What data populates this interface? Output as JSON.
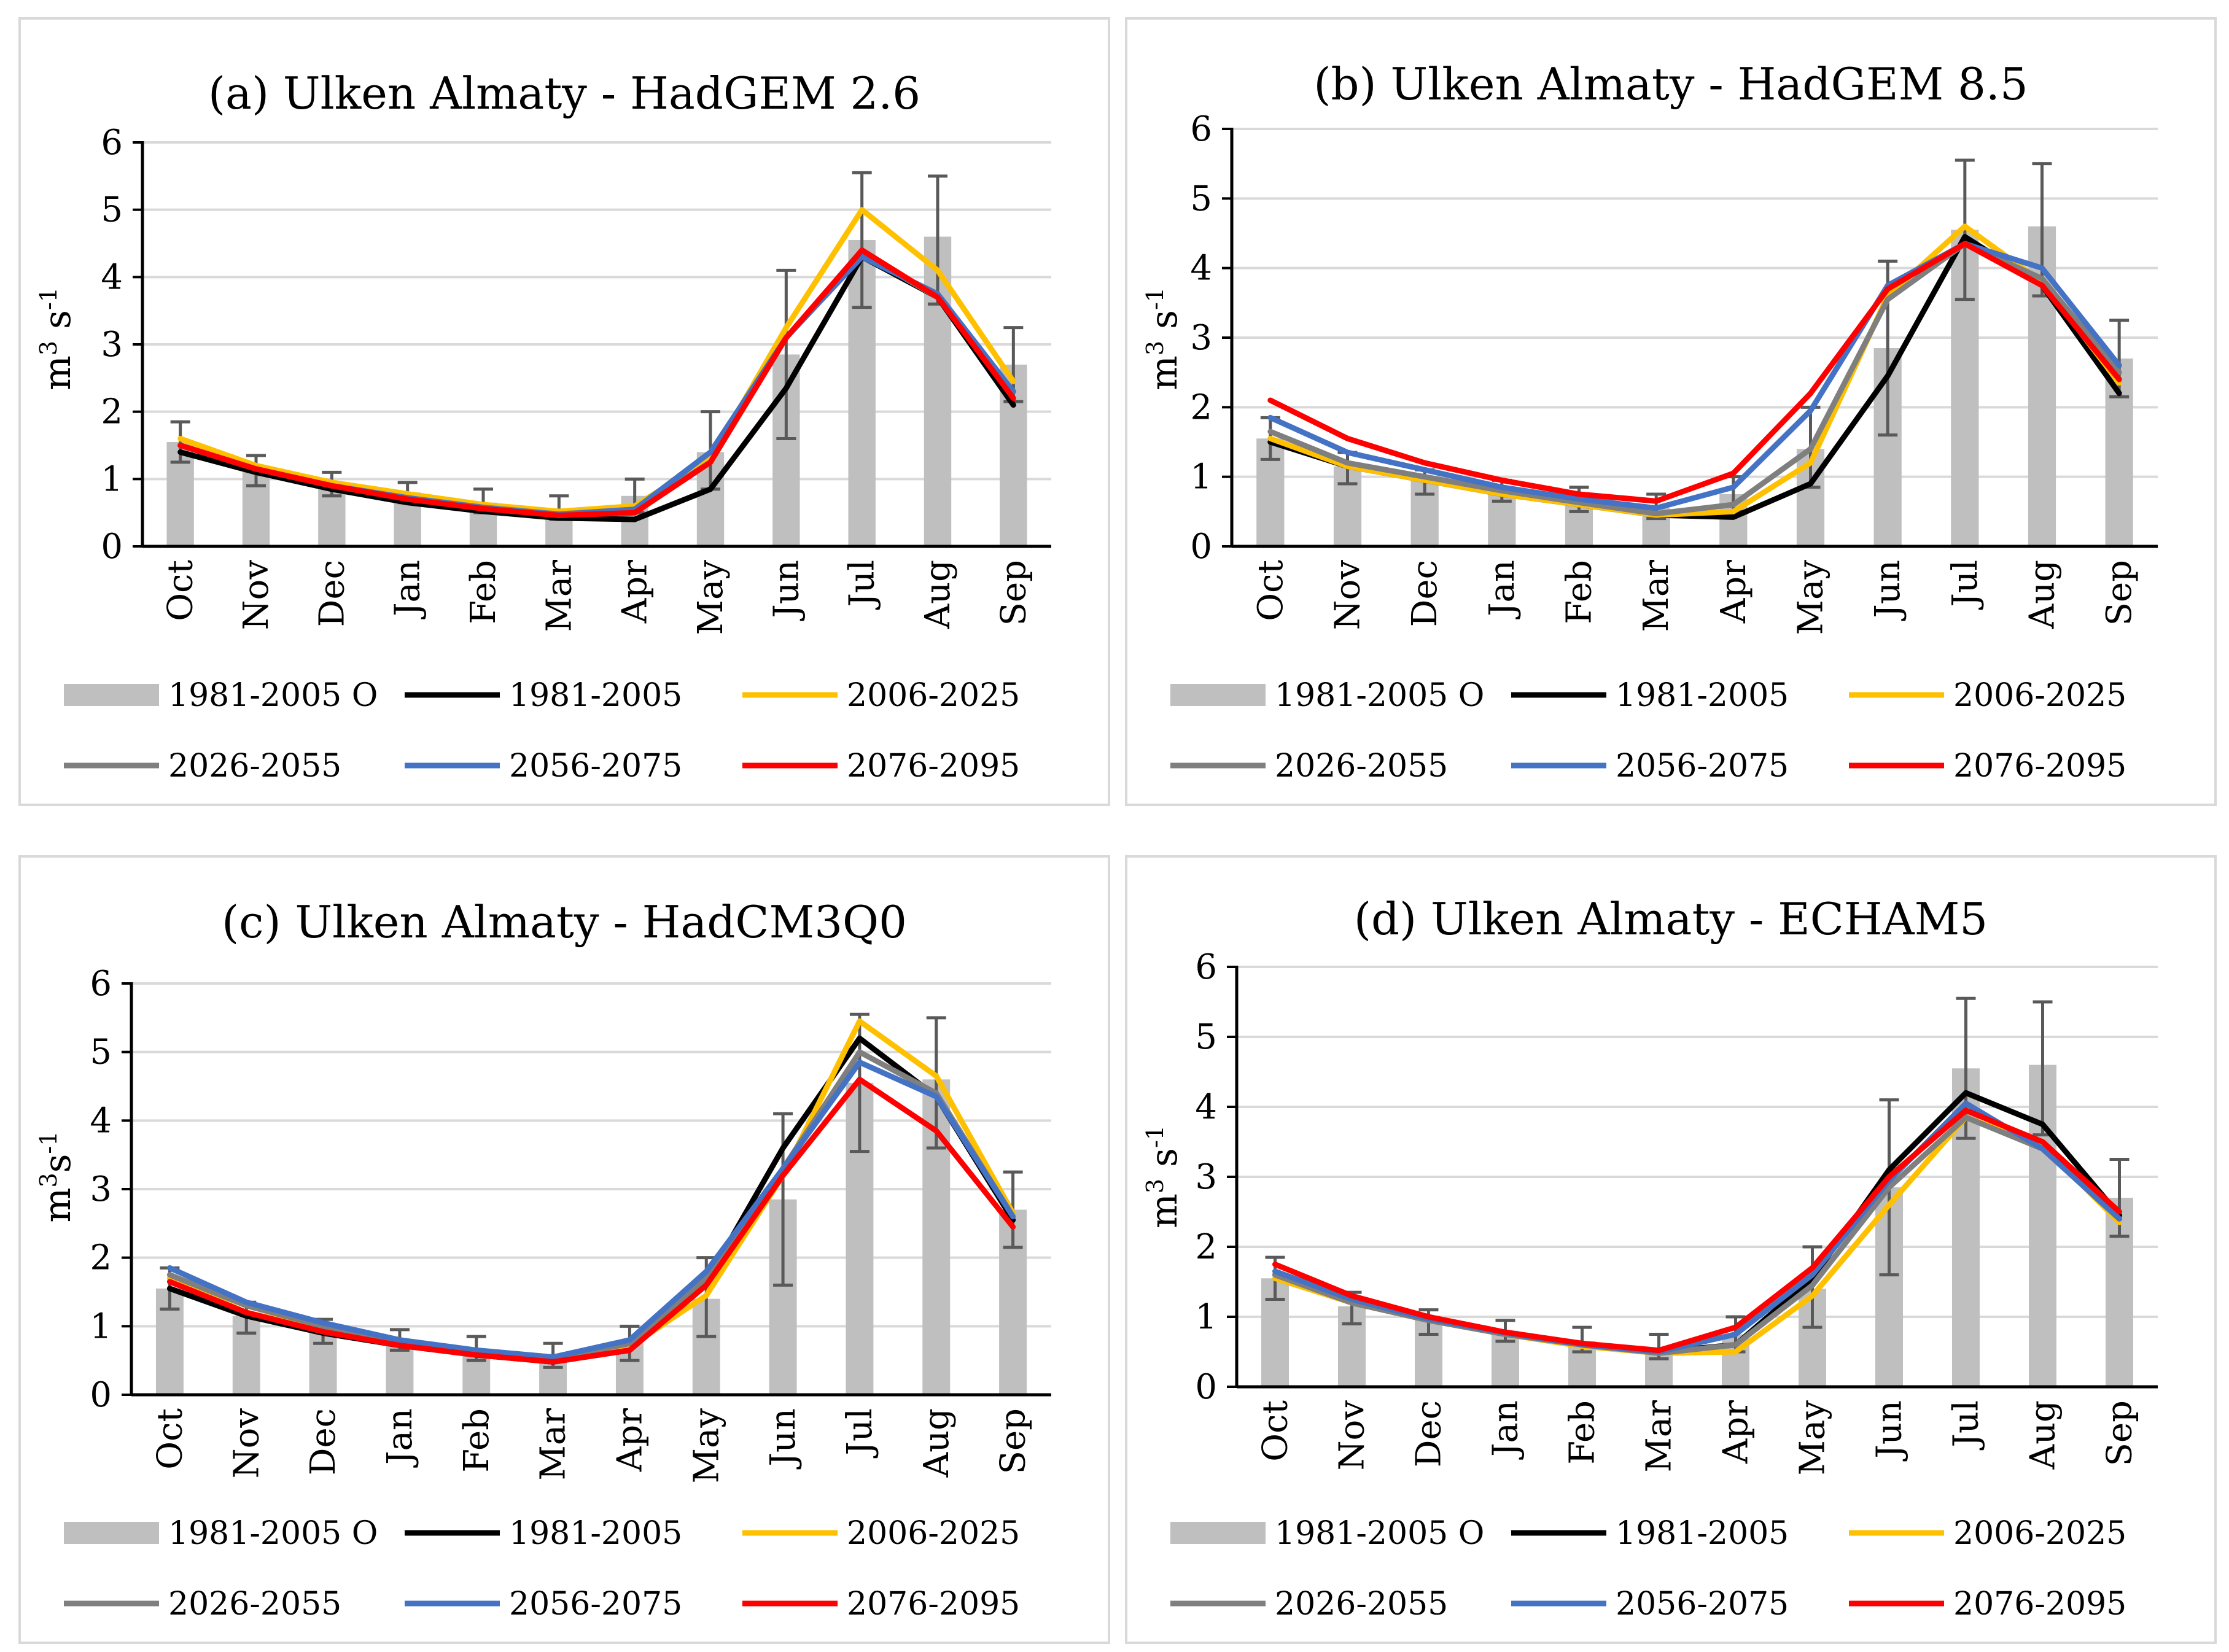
{
  "colors": {
    "obs_bar": "#bfbfbf",
    "grid": "#d9d9d9",
    "axis": "#000000",
    "errbar": "#595959",
    "1981-2005": "#000000",
    "2006-2025": "#ffc000",
    "2026-2055": "#7f7f7f",
    "2056-2075": "#4472c4",
    "2076-2095": "#ff0000"
  },
  "legend": [
    "1981-2005 O",
    "1981-2005",
    "2006-2025",
    "2026-2055",
    "2056-2075",
    "2076-2095"
  ],
  "months": [
    "Oct",
    "Nov",
    "Dec",
    "Jan",
    "Feb",
    "Mar",
    "Apr",
    "May",
    "Jun",
    "Jul",
    "Aug",
    "Sep"
  ],
  "yticks": [
    "0",
    "1",
    "2",
    "3",
    "4",
    "5",
    "6"
  ],
  "ylabels": [
    {
      "base": "m",
      "sup1": "3",
      "mid": " s",
      "sup2": "-1"
    },
    {
      "base": "m",
      "sup1": "3",
      "mid": " s",
      "sup2": "-1"
    },
    {
      "base": "m",
      "sup1": "3",
      "mid": "s",
      "sup2": "-1"
    },
    {
      "base": "m",
      "sup1": "3",
      "mid": " s",
      "sup2": "-1"
    }
  ],
  "chart_data": [
    {
      "type": "bar+line",
      "title": "(a) Ulken Almaty - HadGEM 2.6",
      "ylabel": "m3 s-1",
      "ylim": [
        0,
        6
      ],
      "categories": [
        "Oct",
        "Nov",
        "Dec",
        "Jan",
        "Feb",
        "Mar",
        "Apr",
        "May",
        "Jun",
        "Jul",
        "Aug",
        "Sep"
      ],
      "bars": {
        "name": "1981-2005 O",
        "values": [
          1.55,
          1.15,
          0.95,
          0.8,
          0.65,
          0.55,
          0.75,
          1.4,
          2.85,
          4.55,
          4.6,
          2.7
        ],
        "err_low": [
          1.25,
          0.9,
          0.75,
          0.65,
          0.5,
          0.4,
          0.5,
          0.85,
          1.6,
          3.55,
          3.6,
          2.15
        ],
        "err_high": [
          1.85,
          1.35,
          1.1,
          0.95,
          0.85,
          0.75,
          1.0,
          2.0,
          4.1,
          5.55,
          5.5,
          3.25
        ]
      },
      "series": [
        {
          "name": "1981-2005",
          "values": [
            1.4,
            1.1,
            0.85,
            0.65,
            0.52,
            0.42,
            0.4,
            0.85,
            2.35,
            4.3,
            3.7,
            2.1
          ]
        },
        {
          "name": "2006-2025",
          "values": [
            1.6,
            1.2,
            0.95,
            0.78,
            0.62,
            0.52,
            0.6,
            1.3,
            3.25,
            5.0,
            4.1,
            2.45
          ]
        },
        {
          "name": "2026-2055",
          "values": [
            1.5,
            1.15,
            0.9,
            0.72,
            0.58,
            0.48,
            0.55,
            1.25,
            3.1,
            4.35,
            3.7,
            2.3
          ]
        },
        {
          "name": "2056-2075",
          "values": [
            1.5,
            1.15,
            0.9,
            0.72,
            0.57,
            0.47,
            0.55,
            1.4,
            3.1,
            4.3,
            3.75,
            2.3
          ]
        },
        {
          "name": "2076-2095",
          "values": [
            1.5,
            1.15,
            0.9,
            0.7,
            0.56,
            0.46,
            0.5,
            1.25,
            3.1,
            4.4,
            3.7,
            2.2
          ]
        }
      ]
    },
    {
      "type": "bar+line",
      "title": "(b) Ulken Almaty - HadGEM 8.5",
      "ylabel": "m3 s-1",
      "ylim": [
        0,
        6
      ],
      "categories": [
        "Oct",
        "Nov",
        "Dec",
        "Jan",
        "Feb",
        "Mar",
        "Apr",
        "May",
        "Jun",
        "Jul",
        "Aug",
        "Sep"
      ],
      "bars": {
        "name": "1981-2005 O",
        "values": [
          1.55,
          1.15,
          0.95,
          0.8,
          0.65,
          0.55,
          0.75,
          1.4,
          2.85,
          4.55,
          4.6,
          2.7
        ],
        "err_low": [
          1.25,
          0.9,
          0.75,
          0.65,
          0.5,
          0.4,
          0.5,
          0.85,
          1.6,
          3.55,
          3.6,
          2.15
        ],
        "err_high": [
          1.85,
          1.35,
          1.1,
          0.95,
          0.85,
          0.75,
          1.0,
          2.0,
          4.1,
          5.55,
          5.5,
          3.25
        ]
      },
      "series": [
        {
          "name": "1981-2005",
          "values": [
            1.5,
            1.15,
            0.95,
            0.75,
            0.6,
            0.45,
            0.42,
            0.9,
            2.45,
            4.45,
            3.75,
            2.2
          ]
        },
        {
          "name": "2006-2025",
          "values": [
            1.55,
            1.15,
            0.95,
            0.75,
            0.6,
            0.45,
            0.5,
            1.2,
            3.6,
            4.6,
            3.8,
            2.35
          ]
        },
        {
          "name": "2026-2055",
          "values": [
            1.65,
            1.2,
            1.0,
            0.8,
            0.63,
            0.47,
            0.6,
            1.4,
            3.55,
            4.35,
            3.85,
            2.5
          ]
        },
        {
          "name": "2056-2075",
          "values": [
            1.85,
            1.35,
            1.1,
            0.85,
            0.68,
            0.55,
            0.85,
            1.95,
            3.75,
            4.35,
            4.0,
            2.6
          ]
        },
        {
          "name": "2076-2095",
          "values": [
            2.1,
            1.55,
            1.2,
            0.95,
            0.75,
            0.65,
            1.05,
            2.2,
            3.7,
            4.35,
            3.75,
            2.4
          ]
        }
      ]
    },
    {
      "type": "bar+line",
      "title": "(c) Ulken Almaty - HadCM3Q0",
      "ylabel": "m3s-1",
      "ylim": [
        0,
        6
      ],
      "categories": [
        "Oct",
        "Nov",
        "Dec",
        "Jan",
        "Feb",
        "Mar",
        "Apr",
        "May",
        "Jun",
        "Jul",
        "Aug",
        "Sep"
      ],
      "bars": {
        "name": "1981-2005 O",
        "values": [
          1.55,
          1.15,
          0.95,
          0.8,
          0.65,
          0.55,
          0.75,
          1.4,
          2.85,
          4.55,
          4.6,
          2.7
        ],
        "err_low": [
          1.25,
          0.9,
          0.75,
          0.65,
          0.5,
          0.4,
          0.5,
          0.85,
          1.6,
          3.55,
          3.6,
          2.15
        ],
        "err_high": [
          1.85,
          1.35,
          1.1,
          0.95,
          0.85,
          0.75,
          1.0,
          2.0,
          4.1,
          5.55,
          5.5,
          3.25
        ]
      },
      "series": [
        {
          "name": "1981-2005",
          "values": [
            1.55,
            1.15,
            0.9,
            0.72,
            0.58,
            0.48,
            0.65,
            1.65,
            3.6,
            5.2,
            4.35,
            2.55
          ]
        },
        {
          "name": "2006-2025",
          "values": [
            1.7,
            1.2,
            0.95,
            0.75,
            0.6,
            0.5,
            0.7,
            1.45,
            3.2,
            5.45,
            4.65,
            2.65
          ]
        },
        {
          "name": "2026-2055",
          "values": [
            1.75,
            1.3,
            1.0,
            0.78,
            0.62,
            0.52,
            0.75,
            1.7,
            3.3,
            5.0,
            4.4,
            2.6
          ]
        },
        {
          "name": "2056-2075",
          "values": [
            1.85,
            1.35,
            1.05,
            0.8,
            0.65,
            0.55,
            0.8,
            1.8,
            3.3,
            4.85,
            4.35,
            2.6
          ]
        },
        {
          "name": "2076-2095",
          "values": [
            1.65,
            1.2,
            0.92,
            0.72,
            0.58,
            0.48,
            0.65,
            1.6,
            3.2,
            4.6,
            3.85,
            2.45
          ]
        }
      ]
    },
    {
      "type": "bar+line",
      "title": "(d) Ulken Almaty - ECHAM5",
      "ylabel": "m3 s-1",
      "ylim": [
        0,
        6
      ],
      "categories": [
        "Oct",
        "Nov",
        "Dec",
        "Jan",
        "Feb",
        "Mar",
        "Apr",
        "May",
        "Jun",
        "Jul",
        "Aug",
        "Sep"
      ],
      "bars": {
        "name": "1981-2005 O",
        "values": [
          1.55,
          1.15,
          0.95,
          0.8,
          0.65,
          0.55,
          0.75,
          1.4,
          2.85,
          4.55,
          4.6,
          2.7
        ],
        "err_low": [
          1.25,
          0.9,
          0.75,
          0.65,
          0.5,
          0.4,
          0.5,
          0.85,
          1.6,
          3.55,
          3.6,
          2.15
        ],
        "err_high": [
          1.85,
          1.35,
          1.1,
          0.95,
          0.85,
          0.75,
          1.0,
          2.0,
          4.1,
          5.55,
          5.5,
          3.25
        ]
      },
      "series": [
        {
          "name": "1981-2005",
          "values": [
            1.6,
            1.2,
            0.95,
            0.75,
            0.6,
            0.5,
            0.6,
            1.55,
            3.1,
            4.2,
            3.75,
            2.45
          ]
        },
        {
          "name": "2006-2025",
          "values": [
            1.55,
            1.2,
            0.95,
            0.75,
            0.58,
            0.48,
            0.5,
            1.3,
            2.6,
            3.85,
            3.45,
            2.35
          ]
        },
        {
          "name": "2026-2055",
          "values": [
            1.6,
            1.2,
            0.95,
            0.75,
            0.6,
            0.48,
            0.6,
            1.45,
            2.85,
            3.85,
            3.4,
            2.4
          ]
        },
        {
          "name": "2056-2075",
          "values": [
            1.65,
            1.25,
            0.97,
            0.77,
            0.6,
            0.5,
            0.75,
            1.6,
            2.95,
            4.05,
            3.4,
            2.4
          ]
        },
        {
          "name": "2076-2095",
          "values": [
            1.75,
            1.3,
            1.0,
            0.78,
            0.62,
            0.52,
            0.85,
            1.7,
            3.0,
            3.95,
            3.5,
            2.5
          ]
        }
      ]
    }
  ]
}
